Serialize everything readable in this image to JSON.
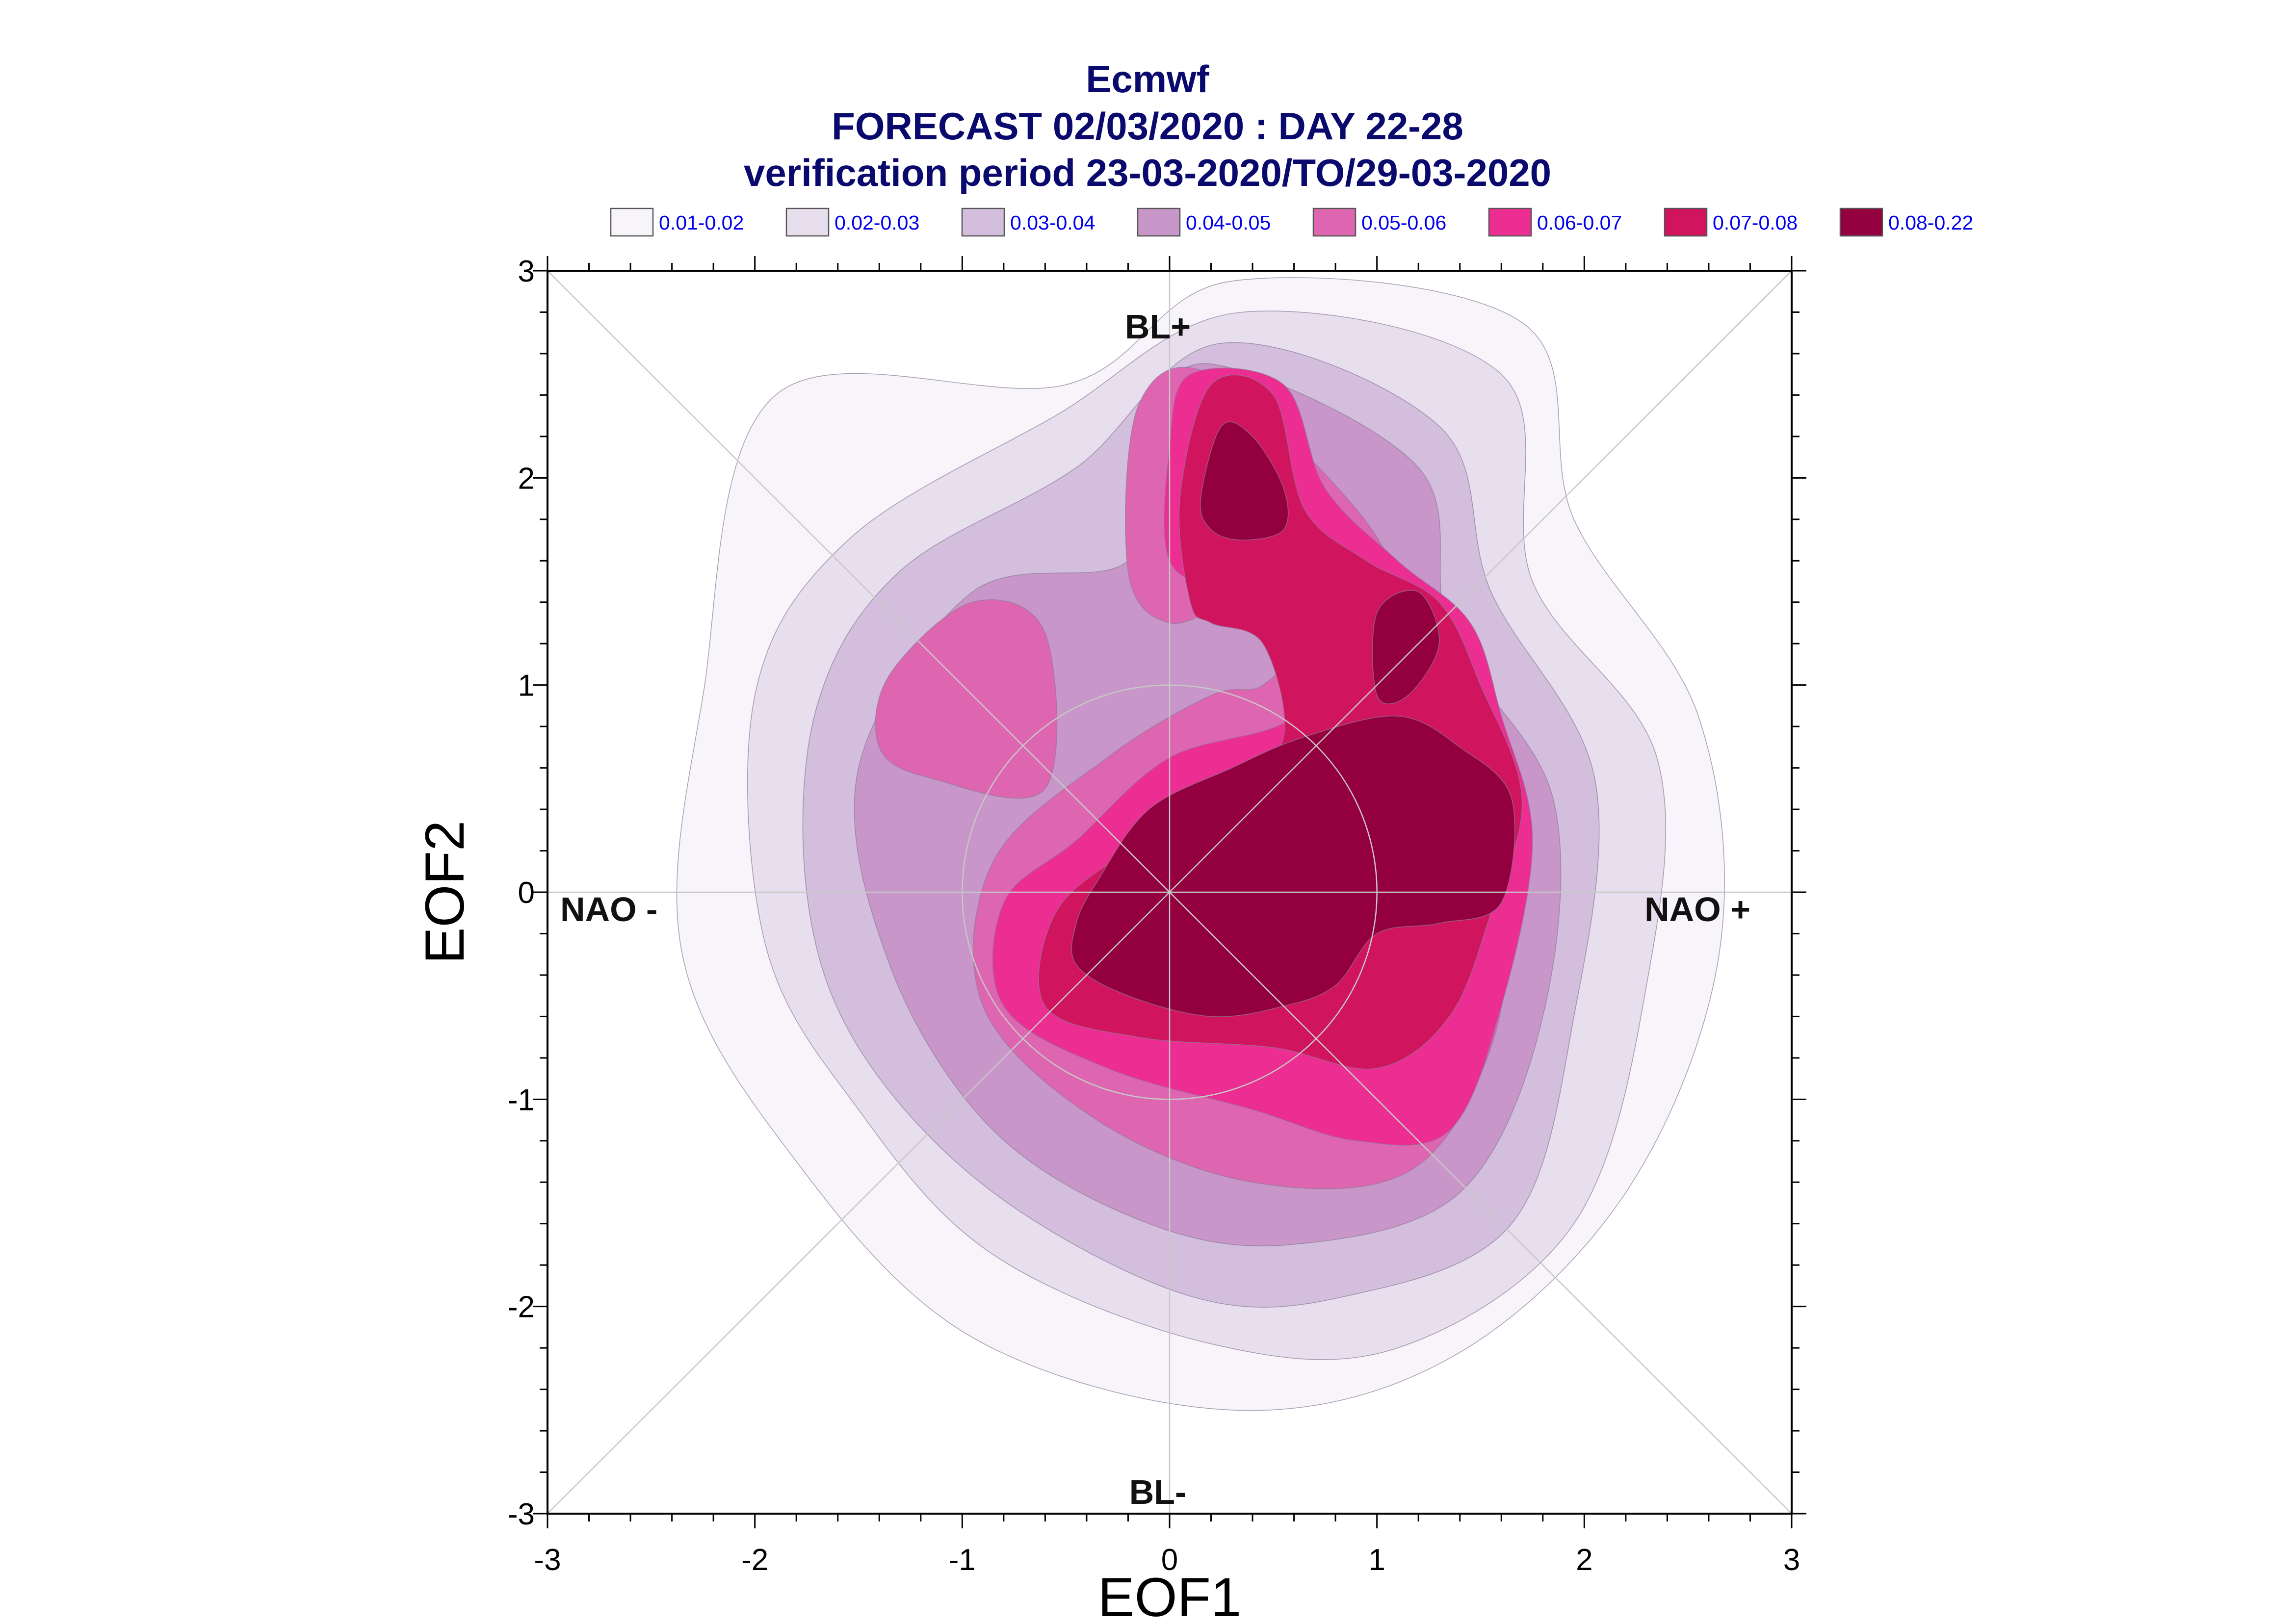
{
  "title": {
    "line1": "Ecmwf",
    "line2": "FORECAST 02/03/2020 : DAY 22-28",
    "line3": "verification period 23-03-2020/TO/29-03-2020"
  },
  "legend": {
    "entries": [
      {
        "label": "0.01-0.02",
        "color": "#f7f4fa"
      },
      {
        "label": "0.02-0.03",
        "color": "#e7deee"
      },
      {
        "label": "0.03-0.04",
        "color": "#d3bedd"
      },
      {
        "label": "0.04-0.05",
        "color": "#c896c8"
      },
      {
        "label": "0.05-0.06",
        "color": "#de66b0"
      },
      {
        "label": "0.06-0.07",
        "color": "#ec2e92"
      },
      {
        "label": "0.07-0.08",
        "color": "#d0145e"
      },
      {
        "label": "0.08-0.22",
        "color": "#94003f"
      }
    ]
  },
  "annotations": {
    "bl_plus": "BL+",
    "bl_minus": "BL-",
    "nao_minus": "NAO -",
    "nao_plus": "NAO +"
  },
  "colors": {
    "title": "#0a0a6e",
    "legend_text": "#0000ee",
    "axis": "#000000",
    "guide_lines": "#c8c8c8"
  },
  "chart_data": {
    "type": "contour",
    "xlabel": "EOF1",
    "ylabel": "EOF2",
    "xlim": [
      -3,
      3
    ],
    "ylim": [
      -3,
      3
    ],
    "xticks": [
      -3,
      -2,
      -1,
      0,
      1,
      2,
      3
    ],
    "yticks": [
      -3,
      -2,
      -1,
      0,
      1,
      2,
      3
    ],
    "reference_circle_radius": 1,
    "diagonal_guides": true,
    "legend_placement": "top",
    "levels": [
      {
        "range": "0.01-0.02",
        "color": "#f7f4fa",
        "regions": [
          [
            [
              -1.9,
              2.4
            ],
            [
              -0.5,
              2.45
            ],
            [
              0.3,
              2.95
            ],
            [
              1.7,
              2.75
            ],
            [
              1.95,
              1.8
            ],
            [
              2.55,
              0.85
            ],
            [
              2.65,
              -0.3
            ],
            [
              2.2,
              -1.45
            ],
            [
              1.35,
              -2.25
            ],
            [
              0.3,
              -2.5
            ],
            [
              -0.95,
              -2.15
            ],
            [
              -1.8,
              -1.3
            ],
            [
              -2.35,
              -0.3
            ],
            [
              -2.25,
              0.95
            ]
          ]
        ]
      },
      {
        "range": "0.02-0.03",
        "color": "#e7deee",
        "regions": [
          [
            [
              -1.55,
              1.7
            ],
            [
              -0.55,
              2.3
            ],
            [
              0.35,
              2.8
            ],
            [
              1.6,
              2.5
            ],
            [
              1.75,
              1.5
            ],
            [
              2.35,
              0.65
            ],
            [
              2.3,
              -0.45
            ],
            [
              1.95,
              -1.6
            ],
            [
              1.1,
              -2.2
            ],
            [
              0.2,
              -2.18
            ],
            [
              -0.85,
              -1.75
            ],
            [
              -1.5,
              -1.05
            ],
            [
              -1.95,
              -0.25
            ],
            [
              -2.0,
              0.95
            ]
          ]
        ]
      },
      {
        "range": "0.03-0.04",
        "color": "#d3bedd",
        "regions": [
          [
            [
              -1.3,
              1.55
            ],
            [
              -0.45,
              2.05
            ],
            [
              0.25,
              2.65
            ],
            [
              1.3,
              2.25
            ],
            [
              1.55,
              1.45
            ],
            [
              2.05,
              0.55
            ],
            [
              1.95,
              -0.6
            ],
            [
              1.65,
              -1.6
            ],
            [
              0.85,
              -1.95
            ],
            [
              0.1,
              -1.95
            ],
            [
              -0.85,
              -1.45
            ],
            [
              -1.5,
              -0.75
            ],
            [
              -1.75,
              0.0
            ],
            [
              -1.7,
              0.9
            ]
          ]
        ]
      },
      {
        "range": "0.04-0.05",
        "color": "#c896c8",
        "regions": [
          [
            [
              -0.95,
              1.45
            ],
            [
              -0.2,
              1.6
            ],
            [
              -0.1,
              2.2
            ],
            [
              0.2,
              2.55
            ],
            [
              1.2,
              2.05
            ],
            [
              1.35,
              1.25
            ],
            [
              1.85,
              0.45
            ],
            [
              1.8,
              -0.6
            ],
            [
              1.4,
              -1.45
            ],
            [
              0.6,
              -1.7
            ],
            [
              -0.1,
              -1.6
            ],
            [
              -0.85,
              -1.15
            ],
            [
              -1.35,
              -0.35
            ],
            [
              -1.5,
              0.6
            ]
          ]
        ]
      },
      {
        "range": "0.05-0.06",
        "color": "#de66b0",
        "regions": [
          [
            [
              -0.2,
              1.55
            ],
            [
              -0.15,
              2.35
            ],
            [
              0.2,
              2.5
            ],
            [
              0.9,
              1.85
            ],
            [
              1.25,
              1.25
            ],
            [
              1.55,
              0.85
            ],
            [
              1.65,
              0.1
            ],
            [
              1.55,
              -0.75
            ],
            [
              1.15,
              -1.35
            ],
            [
              0.4,
              -1.4
            ],
            [
              -0.35,
              -1.1
            ],
            [
              -0.9,
              -0.55
            ],
            [
              -0.85,
              0.15
            ],
            [
              -0.3,
              0.65
            ],
            [
              0.2,
              0.95
            ],
            [
              0.45,
              1.0
            ],
            [
              0.65,
              1.25
            ],
            [
              0.35,
              1.4
            ],
            [
              0.0,
              1.3
            ]
          ],
          [
            [
              -1.15,
              0.55
            ],
            [
              -0.6,
              0.5
            ],
            [
              -0.6,
              1.25
            ],
            [
              -0.95,
              1.4
            ],
            [
              -1.35,
              1.05
            ],
            [
              -1.4,
              0.7
            ]
          ]
        ]
      },
      {
        "range": "0.06-0.07",
        "color": "#ec2e92",
        "regions": [
          [
            [
              0.0,
              1.6
            ],
            [
              0.0,
              2.15
            ],
            [
              0.1,
              2.5
            ],
            [
              0.55,
              2.45
            ],
            [
              0.75,
              1.95
            ],
            [
              1.1,
              1.6
            ],
            [
              1.45,
              1.3
            ],
            [
              1.6,
              0.85
            ],
            [
              1.75,
              0.25
            ],
            [
              1.6,
              -0.55
            ],
            [
              1.35,
              -1.15
            ],
            [
              0.9,
              -1.2
            ],
            [
              0.4,
              -1.05
            ],
            [
              -0.3,
              -0.85
            ],
            [
              -0.8,
              -0.55
            ],
            [
              -0.8,
              -0.05
            ],
            [
              -0.45,
              0.25
            ],
            [
              0.0,
              0.65
            ],
            [
              0.6,
              0.85
            ],
            [
              0.7,
              1.3
            ],
            [
              0.3,
              1.45
            ]
          ]
        ]
      },
      {
        "range": "0.07-0.08",
        "color": "#d0145e",
        "regions": [
          [
            [
              0.1,
              1.4
            ],
            [
              0.05,
              1.9
            ],
            [
              0.2,
              2.45
            ],
            [
              0.5,
              2.4
            ],
            [
              0.65,
              1.85
            ],
            [
              0.95,
              1.6
            ],
            [
              1.3,
              1.4
            ],
            [
              1.5,
              1.0
            ],
            [
              1.7,
              0.45
            ],
            [
              1.55,
              -0.1
            ],
            [
              1.35,
              -0.6
            ],
            [
              1.0,
              -0.85
            ],
            [
              0.5,
              -0.75
            ],
            [
              -0.15,
              -0.7
            ],
            [
              -0.6,
              -0.55
            ],
            [
              -0.55,
              -0.1
            ],
            [
              -0.2,
              0.2
            ],
            [
              0.3,
              0.5
            ],
            [
              0.55,
              0.75
            ],
            [
              0.45,
              1.2
            ],
            [
              0.2,
              1.3
            ]
          ]
        ]
      },
      {
        "range": "0.08-0.22",
        "color": "#94003f",
        "regions": [
          [
            [
              0.15,
              1.9
            ],
            [
              0.25,
              2.25
            ],
            [
              0.4,
              2.2
            ],
            [
              0.55,
              1.95
            ],
            [
              0.55,
              1.75
            ],
            [
              0.35,
              1.7
            ],
            [
              0.2,
              1.75
            ]
          ],
          [
            [
              1.0,
              1.35
            ],
            [
              1.2,
              1.45
            ],
            [
              1.3,
              1.2
            ],
            [
              1.15,
              0.95
            ],
            [
              1.0,
              0.95
            ]
          ],
          [
            [
              -0.35,
              0.05
            ],
            [
              -0.1,
              0.4
            ],
            [
              0.3,
              0.6
            ],
            [
              0.65,
              0.75
            ],
            [
              1.1,
              0.85
            ],
            [
              1.4,
              0.7
            ],
            [
              1.65,
              0.45
            ],
            [
              1.6,
              -0.05
            ],
            [
              1.3,
              -0.15
            ],
            [
              1.0,
              -0.2
            ],
            [
              0.8,
              -0.45
            ],
            [
              0.55,
              -0.55
            ],
            [
              0.2,
              -0.6
            ],
            [
              -0.2,
              -0.5
            ],
            [
              -0.45,
              -0.35
            ],
            [
              -0.45,
              -0.15
            ]
          ]
        ]
      }
    ]
  }
}
